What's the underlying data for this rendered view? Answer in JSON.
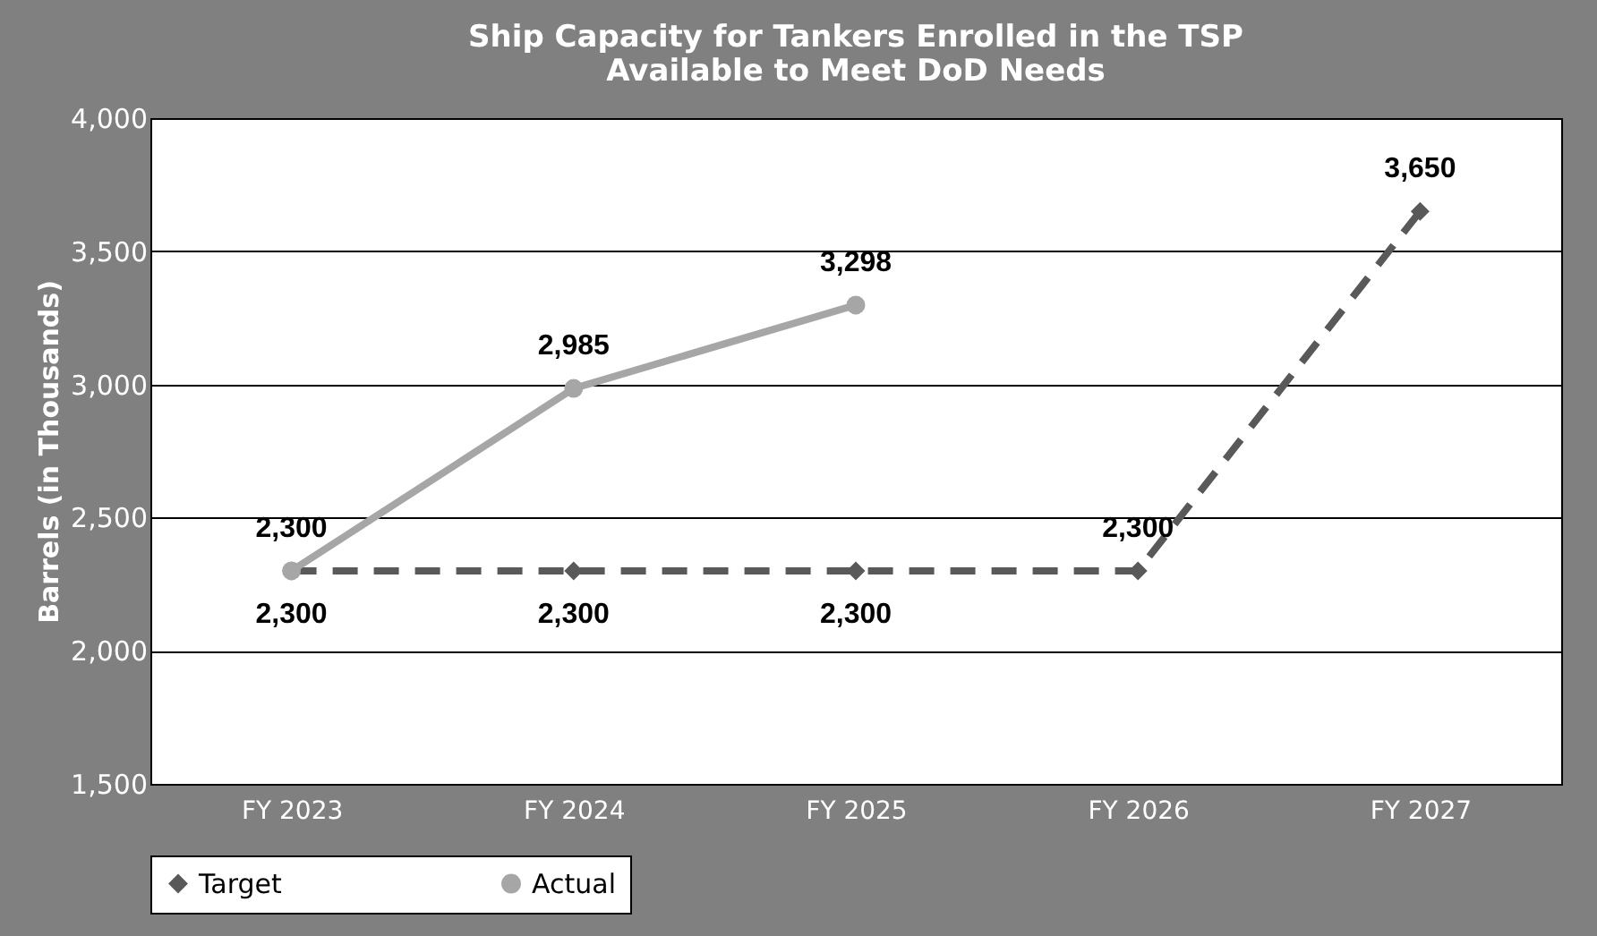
{
  "chart_data": {
    "type": "line",
    "title": "Ship Capacity for Tankers Enrolled in the TSP\nAvailable to Meet DoD Needs",
    "ylabel": "Barrels (in Thousands)",
    "categories": [
      "FY 2023",
      "FY 2024",
      "FY 2025",
      "FY 2026",
      "FY 2027"
    ],
    "series": [
      {
        "name": "Target",
        "color": "#595959",
        "values": [
          2300,
          2300,
          2300,
          2300,
          3650
        ],
        "value_labels": [
          "2,300",
          "2,300",
          "2,300",
          "2,300",
          "3,650"
        ],
        "marker": "diamond",
        "line_style": "dashed"
      },
      {
        "name": "Actual",
        "color": "#a6a6a6",
        "values": [
          2300,
          2985,
          3298,
          null,
          null
        ],
        "value_labels": [
          "2,300",
          "2,985",
          "3,298",
          null,
          null
        ],
        "marker": "circle",
        "line_style": "solid"
      }
    ],
    "ylim": [
      1500,
      4000
    ],
    "yticks": [
      {
        "value": 1500,
        "label": "1,500"
      },
      {
        "value": 2000,
        "label": "2,000"
      },
      {
        "value": 2500,
        "label": "2,500"
      },
      {
        "value": 3000,
        "label": "3,000"
      },
      {
        "value": 3500,
        "label": "3,500"
      },
      {
        "value": 4000,
        "label": "4,000"
      }
    ],
    "grid": "y",
    "legend": "bottom"
  }
}
